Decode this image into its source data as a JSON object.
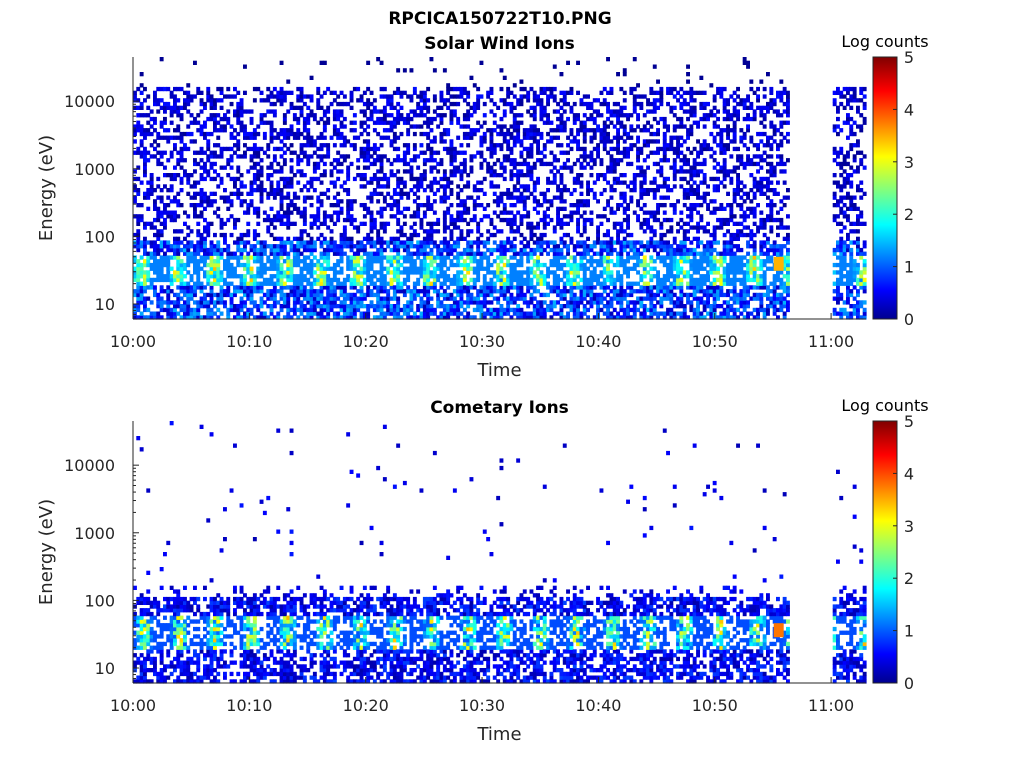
{
  "figure_title": "RPCICA150722T10.PNG",
  "chart_data": [
    {
      "type": "heatmap",
      "title": "Solar Wind Ions",
      "xlabel": "Time",
      "ylabel": "Energy (eV)",
      "y_scale": "log",
      "x_ticks": [
        "10:00",
        "10:10",
        "10:20",
        "10:30",
        "10:40",
        "10:50",
        "11:00"
      ],
      "y_ticks": [
        "10",
        "100",
        "1000",
        "10000"
      ],
      "xlim": [
        "10:00",
        "11:03"
      ],
      "ylim": [
        6,
        45000
      ],
      "colorbar": {
        "label": "Log counts",
        "ticks": [
          "0",
          "1",
          "2",
          "3",
          "4",
          "5"
        ],
        "range": [
          0,
          5
        ],
        "colormap": "jet"
      },
      "data_gap": [
        "10:56:30",
        "11:00:00"
      ],
      "peak_log_counts": 3.5,
      "peak_time": "10:55:30",
      "peak_energy_ev": 38
    },
    {
      "type": "heatmap",
      "title": "Cometary Ions",
      "xlabel": "Time",
      "ylabel": "Energy (eV)",
      "y_scale": "log",
      "x_ticks": [
        "10:00",
        "10:10",
        "10:20",
        "10:30",
        "10:40",
        "10:50",
        "11:00"
      ],
      "y_ticks": [
        "10",
        "100",
        "1000",
        "10000"
      ],
      "xlim": [
        "10:00",
        "11:03"
      ],
      "ylim": [
        6,
        45000
      ],
      "colorbar": {
        "label": "Log counts",
        "ticks": [
          "0",
          "1",
          "2",
          "3",
          "4",
          "5"
        ],
        "range": [
          0,
          5
        ],
        "colormap": "jet"
      },
      "data_gap": [
        "10:56:30",
        "11:00:00"
      ],
      "peak_log_counts": 3.8,
      "peak_time": "10:55:30",
      "peak_energy_ev": 35
    }
  ]
}
